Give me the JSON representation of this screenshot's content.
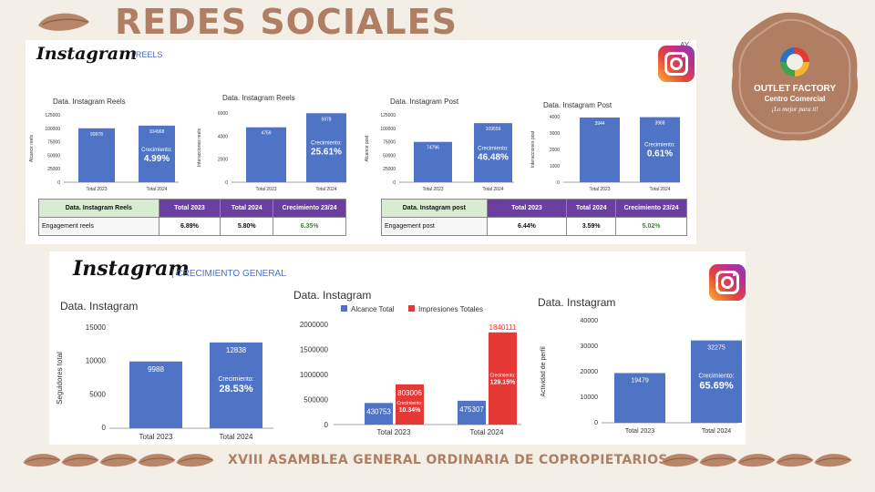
{
  "page": {
    "title": "REDES SOCIALES",
    "footer": "XVIII ASAMBLEA GENERAL ORDINARIA DE COPROPIETARIOS"
  },
  "brand": {
    "name": "OUTLET FACTORY",
    "subtitle": "Centro Comercial",
    "tagline": "¡Lo mejor para ti!"
  },
  "colors": {
    "accent": "#b07f63",
    "bar_blue": "#4f74c6",
    "bar_red": "#e53935",
    "header_purple": "#6a3fa0",
    "header_green": "#d9ecd3",
    "growth_green": "#3c8a2e"
  },
  "panel1": {
    "logo": "Instagram",
    "subtitle": "| REELS",
    "corner_mark": "AY"
  },
  "panel2": {
    "logo": "Instagram",
    "subtitle": "| CRECIMIENTO GENERAL"
  },
  "table_reels": {
    "headers": [
      "Data. Instagram Reels",
      "Total 2023",
      "Total 2024",
      "Crecimiento 23/24"
    ],
    "row": [
      "Engagement reels",
      "6.89%",
      "5.80%",
      "6.35%"
    ]
  },
  "table_post": {
    "headers": [
      "Data. Instagram post",
      "Total 2023",
      "Total 2024",
      "Crecimiento 23/24"
    ],
    "row": [
      "Engagement post",
      "6.44%",
      "3.59%",
      "5.02%"
    ]
  },
  "chart_data": [
    {
      "type": "bar",
      "title": "Data. Instagram Reels",
      "ylabel": "Alcance reels",
      "categories": [
        "Total 2023",
        "Total 2024"
      ],
      "values": [
        99978,
        104968
      ],
      "value_labels": [
        "99978",
        "104968"
      ],
      "ylim": [
        0,
        125000
      ],
      "ticks": [
        0,
        25000,
        50000,
        75000,
        100000,
        125000
      ],
      "growth_label": "Crecimiento:",
      "growth_value": "4.99%"
    },
    {
      "type": "bar",
      "title": "Data. Instagram Reels",
      "ylabel": "Interacciones reels",
      "categories": [
        "Total 2023",
        "Total 2024"
      ],
      "values": [
        4759,
        5978
      ],
      "value_labels": [
        "4759",
        "5978"
      ],
      "ylim": [
        0,
        6000
      ],
      "ticks": [
        0,
        2000,
        4000,
        6000
      ],
      "growth_label": "Crecimiento:",
      "growth_value": "25.61%"
    },
    {
      "type": "bar",
      "title": "Data. Instagram Post",
      "ylabel": "Alcance post",
      "categories": [
        "Total 2023",
        "Total 2024"
      ],
      "values": [
        74796,
        109559
      ],
      "value_labels": [
        "74796",
        "109559"
      ],
      "ylim": [
        0,
        125000
      ],
      "ticks": [
        0,
        25000,
        50000,
        75000,
        100000,
        125000
      ],
      "growth_label": "Crecimiento:",
      "growth_value": "46.48%"
    },
    {
      "type": "bar",
      "title": "Data. Instagram Post",
      "ylabel": "Interacciones post",
      "categories": [
        "Total 2023",
        "Total 2024"
      ],
      "values": [
        3944,
        3968
      ],
      "value_labels": [
        "3944",
        "3968"
      ],
      "ylim": [
        0,
        4000
      ],
      "ticks": [
        0,
        1000,
        2000,
        3000,
        4000
      ],
      "growth_label": "Crecimiento:",
      "growth_value": "0.61%"
    },
    {
      "type": "bar",
      "title": "Data. Instagram",
      "ylabel": "Seguidores total",
      "categories": [
        "Total 2023",
        "Total 2024"
      ],
      "values": [
        9988,
        12838
      ],
      "value_labels": [
        "9988",
        "12838"
      ],
      "ylim": [
        0,
        15000
      ],
      "ticks": [
        0,
        5000,
        10000,
        15000
      ],
      "growth_label": "Crecimiento:",
      "growth_value": "28.53%"
    },
    {
      "type": "bar",
      "title": "Data. Instagram",
      "ylabel": "",
      "categories": [
        "Total 2023",
        "Total 2024"
      ],
      "series": [
        {
          "name": "Alcance Total",
          "color": "#4f74c6",
          "values": [
            430753,
            475307
          ],
          "value_labels": [
            "430753",
            "475307"
          ]
        },
        {
          "name": "Impresiones Totales",
          "color": "#e53935",
          "values": [
            803006,
            1840111
          ],
          "value_labels": [
            "803006",
            "1840111"
          ],
          "growth_label": "Crecimiento:",
          "growth_values": [
            "10.34%",
            "129.15%"
          ]
        }
      ],
      "legend": "top",
      "ylim": [
        0,
        2000000
      ],
      "ticks": [
        0,
        500000,
        1000000,
        1500000,
        2000000
      ]
    },
    {
      "type": "bar",
      "title": "Data. Instagram",
      "ylabel": "Actividad de perfil",
      "categories": [
        "Total 2023",
        "Total 2024"
      ],
      "values": [
        19479,
        32275
      ],
      "value_labels": [
        "19479",
        "32275"
      ],
      "ylim": [
        0,
        40000
      ],
      "ticks": [
        0,
        10000,
        20000,
        30000,
        40000
      ],
      "growth_label": "Crecimiento:",
      "growth_value": "65.69%"
    }
  ]
}
